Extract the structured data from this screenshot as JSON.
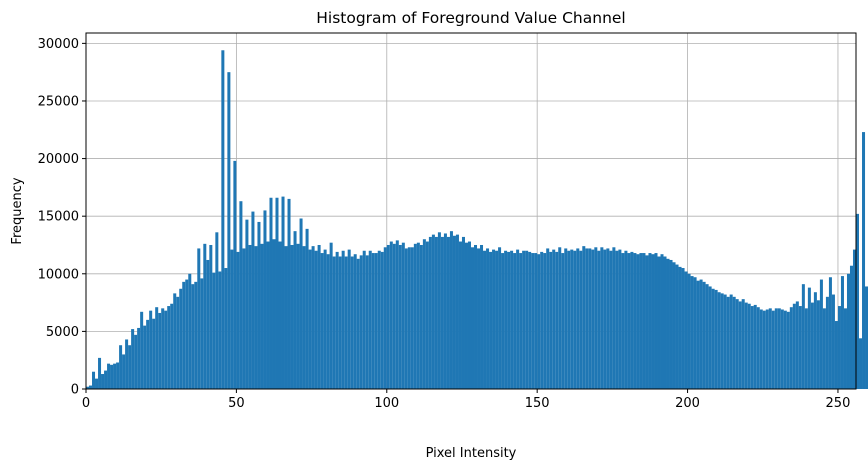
{
  "chart_data": {
    "type": "bar",
    "title": "Histogram of Foreground Value Channel",
    "xlabel": "Pixel Intensity",
    "ylabel": "Frequency",
    "xlim": [
      0,
      256
    ],
    "ylim": [
      0,
      30900
    ],
    "grid": true,
    "x_ticks": [
      0,
      50,
      100,
      150,
      200,
      250
    ],
    "y_ticks": [
      0,
      5000,
      10000,
      15000,
      20000,
      25000,
      30000
    ],
    "bar_color": "#1f77b4",
    "bin_width": 1,
    "bin_start": 0,
    "values": [
      200,
      300,
      1500,
      900,
      2700,
      1300,
      1600,
      2200,
      2100,
      2200,
      2300,
      3800,
      3000,
      4300,
      3800,
      5200,
      4700,
      5300,
      6700,
      5500,
      6000,
      6800,
      6100,
      7100,
      6600,
      7000,
      6800,
      7200,
      7400,
      8300,
      8000,
      8700,
      9300,
      9500,
      10000,
      9100,
      9300,
      12200,
      9600,
      12600,
      11200,
      12500,
      10100,
      13600,
      10200,
      29400,
      10500,
      27500,
      12100,
      19800,
      11900,
      16300,
      12200,
      14700,
      12500,
      15400,
      12400,
      14500,
      12600,
      15500,
      12800,
      16600,
      13000,
      16600,
      12800,
      16700,
      12400,
      16500,
      12500,
      13700,
      12600,
      14800,
      12400,
      13900,
      12100,
      12400,
      12000,
      12500,
      11800,
      12100,
      11700,
      12700,
      11500,
      11900,
      11500,
      12000,
      11500,
      12100,
      11500,
      11700,
      11300,
      11600,
      12000,
      11600,
      12000,
      11800,
      11800,
      12000,
      11900,
      12300,
      12500,
      12800,
      12600,
      12900,
      12500,
      12700,
      12200,
      12300,
      12300,
      12600,
      12700,
      12500,
      13000,
      12800,
      13200,
      13400,
      13200,
      13600,
      13200,
      13500,
      13200,
      13700,
      13300,
      13400,
      12800,
      13200,
      12700,
      12800,
      12300,
      12500,
      12200,
      12500,
      12000,
      12200,
      11900,
      12100,
      12000,
      12300,
      11800,
      12000,
      11900,
      12000,
      11800,
      12100,
      11800,
      12000,
      12000,
      11900,
      11800,
      11800,
      11700,
      11900,
      11800,
      12200,
      11900,
      12100,
      11900,
      12300,
      11800,
      12200,
      12000,
      12100,
      12000,
      12200,
      12000,
      12400,
      12200,
      12200,
      12100,
      12300,
      12000,
      12300,
      12100,
      12200,
      12000,
      12300,
      12000,
      12100,
      11800,
      12000,
      11800,
      11900,
      11800,
      11700,
      11800,
      11800,
      11600,
      11800,
      11700,
      11800,
      11500,
      11700,
      11500,
      11300,
      11200,
      11000,
      10800,
      10600,
      10500,
      10200,
      10000,
      9800,
      9700,
      9400,
      9500,
      9300,
      9100,
      8900,
      8700,
      8600,
      8400,
      8300,
      8200,
      8000,
      8200,
      8000,
      7800,
      7600,
      7800,
      7500,
      7400,
      7200,
      7300,
      7100,
      6900,
      6800,
      6900,
      7000,
      6800,
      7000,
      7000,
      6900,
      6800,
      6700,
      7100,
      7400,
      7600,
      7200,
      9100,
      7000,
      8800,
      7500,
      8400,
      7700,
      9500,
      7000,
      8000,
      9700,
      8200,
      5900,
      7200,
      9800,
      7000,
      10000,
      10700,
      12100,
      15200,
      4400,
      22300,
      8900
    ]
  }
}
